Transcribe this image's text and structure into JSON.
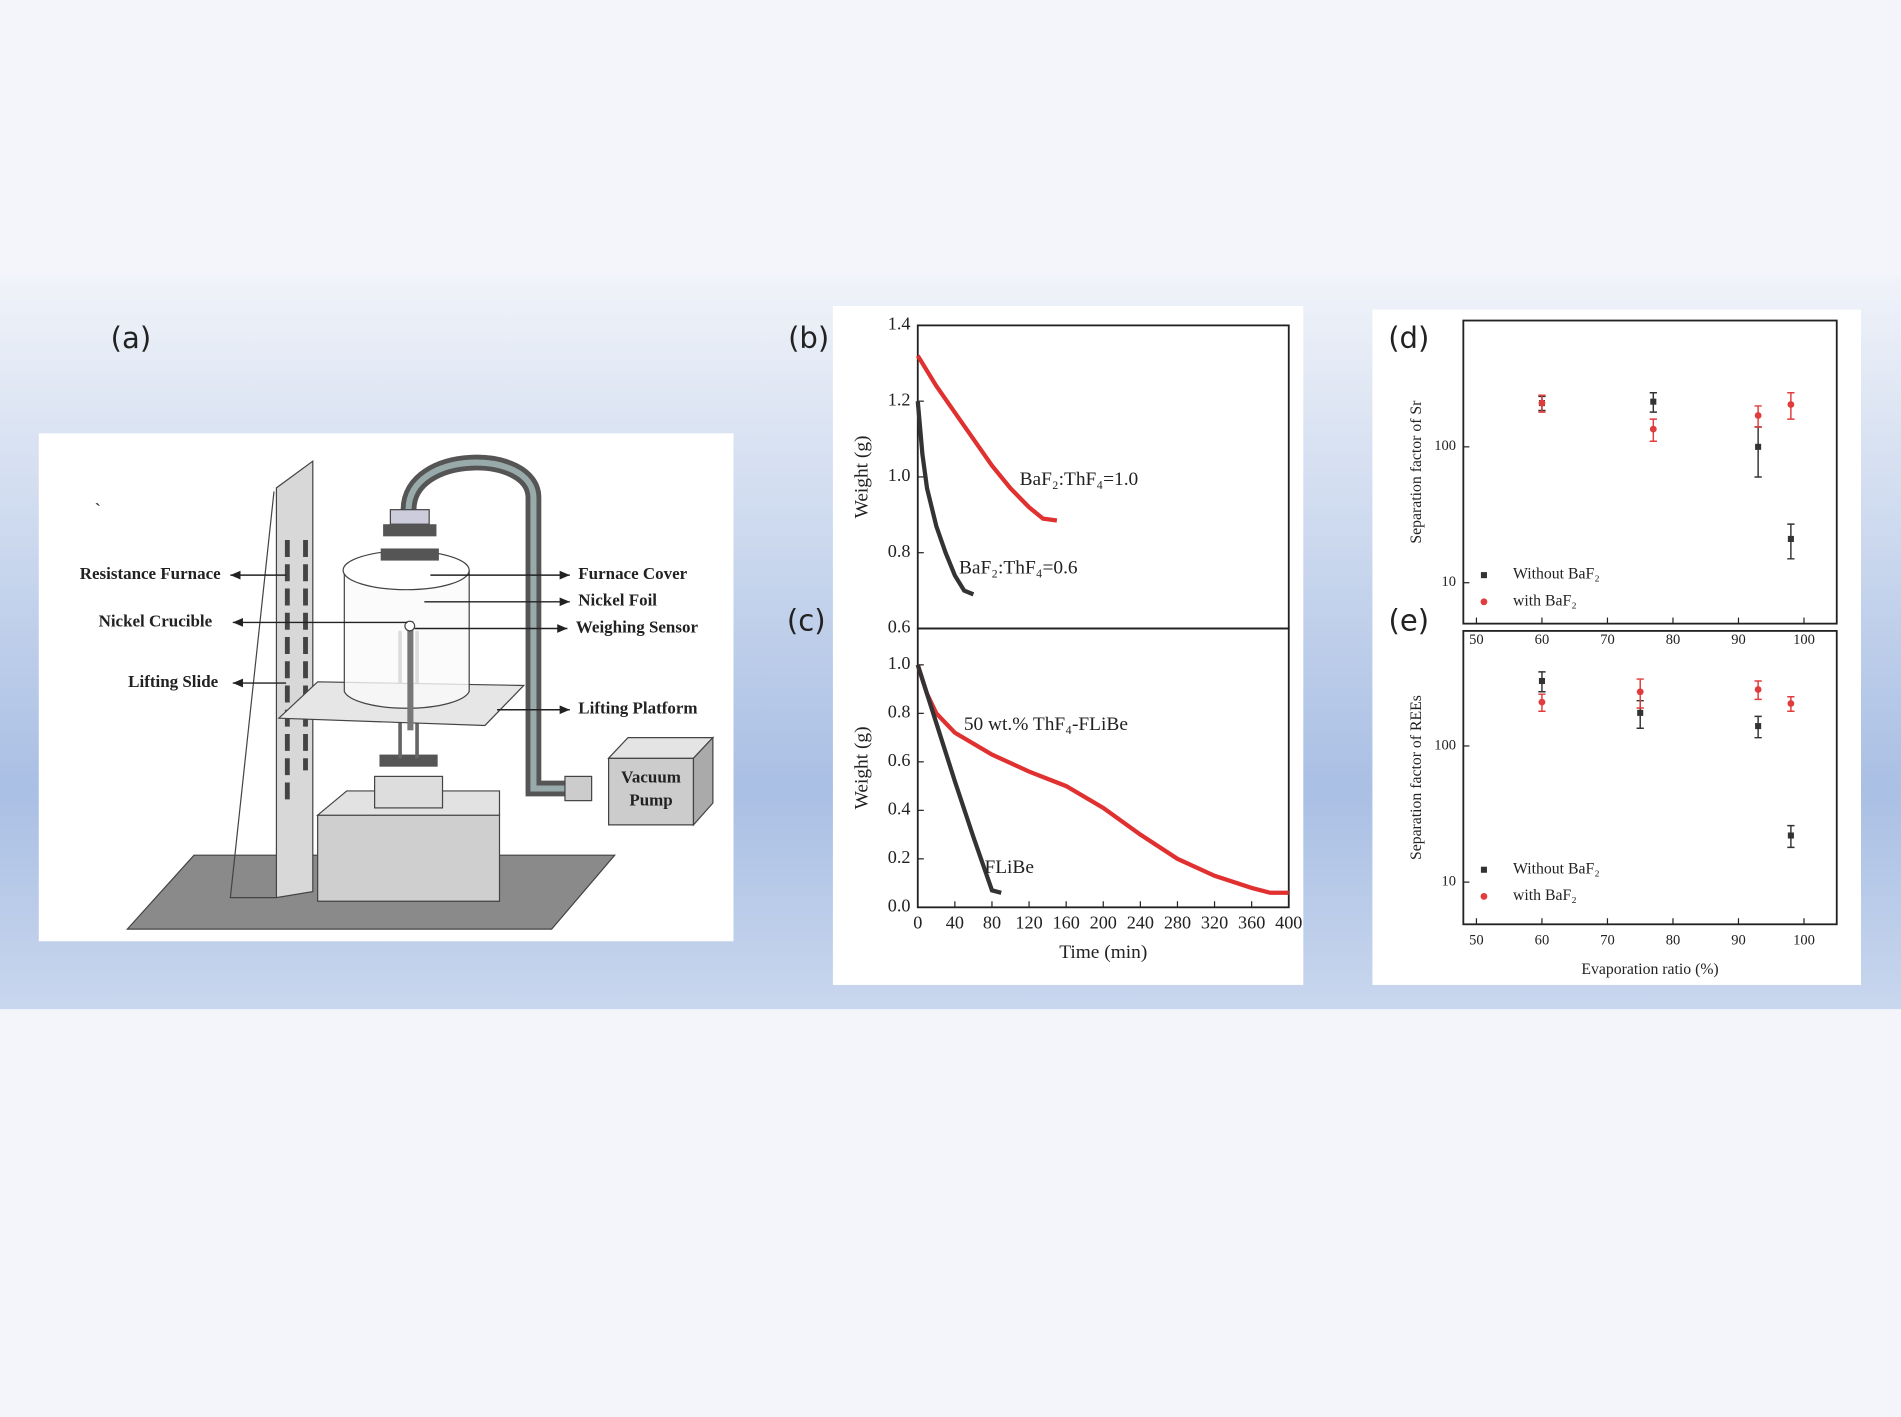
{
  "panel_labels": [
    "(a)",
    "(b)",
    "(c)",
    "(d)",
    "(e)"
  ],
  "diagram": {
    "stray_mark": "`",
    "left_labels": [
      "Resistance Furnace",
      "Nickel Crucible",
      "Lifting Slide"
    ],
    "right_labels": [
      "Furnace Cover",
      "Nickel Foil",
      "Weighing Sensor",
      "Lifting Platform"
    ],
    "pump_label": [
      "Vacuum",
      "Pump"
    ]
  },
  "chart_data": [
    {
      "type": "line",
      "ylabel": "Weight (g)",
      "xlim": [
        0,
        400
      ],
      "ylim": [
        0.6,
        1.4
      ],
      "yticks": [
        0.6,
        0.8,
        {
          "value": 1,
          "label": "1.0"
        },
        1.2,
        1.4
      ],
      "series": [
        {
          "name": "BaF₂:ThF₄=1.0",
          "color": "#e03030",
          "x": [
            0,
            20,
            40,
            60,
            80,
            100,
            120,
            135,
            150
          ],
          "values": [
            1.32,
            1.24,
            1.17,
            1.1,
            1.03,
            0.97,
            0.92,
            0.89,
            0.885
          ]
        },
        {
          "name": "BaF₂:ThF₄=0.6",
          "color": "#333333",
          "x": [
            0,
            5,
            10,
            20,
            30,
            40,
            50,
            60
          ],
          "values": [
            1.2,
            1.06,
            0.97,
            0.87,
            0.8,
            0.74,
            0.7,
            0.69
          ]
        }
      ]
    },
    {
      "type": "line",
      "xlabel": "Time (min)",
      "ylabel": "Weight (g)",
      "xlim": [
        0,
        400
      ],
      "ylim": [
        0,
        1.15
      ],
      "xticks": [
        0,
        40,
        80,
        120,
        160,
        200,
        240,
        280,
        320,
        360,
        400
      ],
      "yticks": [
        {
          "value": 0,
          "label": "0.0"
        },
        0.2,
        0.4,
        0.6,
        0.8,
        {
          "value": 1,
          "label": "1.0"
        }
      ],
      "series": [
        {
          "name": "50 wt.% ThF₄-FLiBe",
          "color": "#e03030",
          "x": [
            0,
            10,
            20,
            40,
            80,
            120,
            160,
            200,
            240,
            280,
            320,
            360,
            380,
            400
          ],
          "values": [
            1.0,
            0.88,
            0.8,
            0.72,
            0.63,
            0.56,
            0.5,
            0.41,
            0.3,
            0.2,
            0.13,
            0.08,
            0.06,
            0.06
          ]
        },
        {
          "name": "FLiBe",
          "color": "#333333",
          "x": [
            0,
            20,
            40,
            60,
            80,
            90
          ],
          "values": [
            1.0,
            0.76,
            0.52,
            0.29,
            0.07,
            0.06
          ]
        }
      ]
    },
    {
      "type": "scatter",
      "ylabel": "Separation factor of Sr",
      "log_y": true,
      "legend": "lower left",
      "xlim": [
        48,
        105
      ],
      "ylim": [
        5,
        850
      ],
      "xticks": [
        50,
        60,
        70,
        80,
        90,
        100
      ],
      "yticks": [
        10,
        100
      ],
      "series": [
        {
          "name": "Without BaF₂",
          "color": "#333333",
          "x": [
            60,
            77,
            93,
            98
          ],
          "values": [
            210,
            215,
            100,
            21
          ],
          "errors": [
            25,
            35,
            40,
            6
          ]
        },
        {
          "name": "with BaF₂",
          "color": "#e03c3c",
          "x": [
            60,
            77,
            93,
            98
          ],
          "values": [
            210,
            135,
            170,
            205
          ],
          "errors": [
            30,
            25,
            30,
            45
          ]
        }
      ]
    },
    {
      "type": "scatter",
      "xlabel": "Evaporation ratio (%)",
      "ylabel": "Separation factor of REEs",
      "log_y": true,
      "legend": "lower left",
      "xlim": [
        48,
        105
      ],
      "ylim": [
        4.9,
        700
      ],
      "xticks": [
        50,
        60,
        70,
        80,
        90,
        100
      ],
      "yticks": [
        10,
        100
      ],
      "series": [
        {
          "name": "Without BaF₂",
          "color": "#333333",
          "x": [
            60,
            75,
            93,
            98
          ],
          "values": [
            300,
            175,
            140,
            22
          ],
          "errors": [
            50,
            40,
            25,
            4
          ]
        },
        {
          "name": "with BaF₂",
          "color": "#e03c3c",
          "x": [
            60,
            75,
            93,
            98
          ],
          "values": [
            210,
            250,
            260,
            205
          ],
          "errors": [
            30,
            60,
            40,
            25
          ]
        }
      ]
    }
  ]
}
